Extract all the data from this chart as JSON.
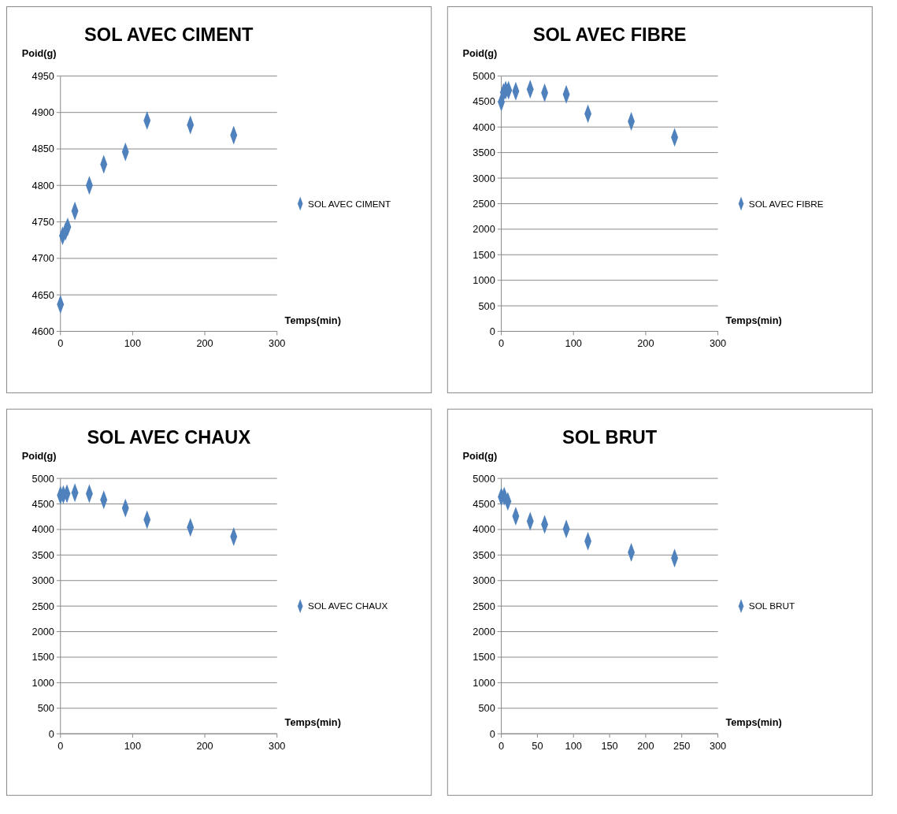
{
  "chart_data": [
    {
      "type": "scatter",
      "title": "SOL AVEC CIMENT",
      "ylabel": "Poid(g)",
      "xlabel": "Temps(min)",
      "xlim": [
        0,
        300
      ],
      "xticks": [
        0,
        100,
        200,
        300
      ],
      "ylim": [
        4600,
        4950
      ],
      "yticks": [
        4600,
        4650,
        4700,
        4750,
        4800,
        4850,
        4900,
        4950
      ],
      "grid": "y",
      "legend": "right",
      "marker": "diamond",
      "series": [
        {
          "name": "SOL AVEC CIMENT",
          "color": "#4f81bd",
          "x": [
            0,
            3,
            7,
            10,
            20,
            40,
            60,
            90,
            120,
            180,
            240
          ],
          "values": [
            4637,
            4731,
            4737,
            4743,
            4765,
            4800,
            4829,
            4846,
            4889,
            4883,
            4869
          ]
        }
      ]
    },
    {
      "type": "scatter",
      "title": "SOL AVEC FIBRE",
      "ylabel": "Poid(g)",
      "xlabel": "Temps(min)",
      "xlim": [
        0,
        300
      ],
      "xticks": [
        0,
        100,
        200,
        300
      ],
      "ylim": [
        0,
        5000
      ],
      "yticks": [
        0,
        500,
        1000,
        1500,
        2000,
        2500,
        3000,
        3500,
        4000,
        4500,
        5000
      ],
      "grid": "y",
      "legend": "right",
      "marker": "diamond",
      "series": [
        {
          "name": "SOL AVEC FIBRE",
          "color": "#4f81bd",
          "x": [
            0,
            3,
            6,
            10,
            20,
            40,
            60,
            90,
            120,
            180,
            240
          ],
          "values": [
            4490,
            4680,
            4720,
            4720,
            4700,
            4740,
            4670,
            4640,
            4260,
            4110,
            3800
          ]
        }
      ]
    },
    {
      "type": "scatter",
      "title": "SOL AVEC CHAUX",
      "ylabel": "Poid(g)",
      "xlabel": "Temps(min)",
      "xlim": [
        0,
        300
      ],
      "xticks": [
        0,
        100,
        200,
        300
      ],
      "ylim": [
        0,
        5000
      ],
      "yticks": [
        0,
        500,
        1000,
        1500,
        2000,
        2500,
        3000,
        3500,
        4000,
        4500,
        5000
      ],
      "grid": "y",
      "legend": "right",
      "marker": "diamond",
      "series": [
        {
          "name": "SOL AVEC CHAUX",
          "color": "#4f81bd",
          "x": [
            0,
            4,
            9,
            20,
            40,
            60,
            90,
            120,
            180,
            240
          ],
          "values": [
            4670,
            4680,
            4700,
            4720,
            4700,
            4580,
            4420,
            4190,
            4040,
            3860
          ]
        }
      ]
    },
    {
      "type": "scatter",
      "title": "SOL BRUT",
      "ylabel": "Poid(g)",
      "xlabel": "Temps(min)",
      "xlim": [
        0,
        300
      ],
      "xticks": [
        0,
        50,
        100,
        150,
        200,
        250,
        300
      ],
      "ylim": [
        0,
        5000
      ],
      "yticks": [
        0,
        500,
        1000,
        1500,
        2000,
        2500,
        3000,
        3500,
        4000,
        4500,
        5000
      ],
      "grid": "y",
      "legend": "right",
      "marker": "diamond",
      "series": [
        {
          "name": "SOL BRUT",
          "color": "#4f81bd",
          "x": [
            0,
            4,
            9,
            20,
            40,
            60,
            90,
            120,
            180,
            240
          ],
          "values": [
            4640,
            4650,
            4550,
            4260,
            4160,
            4100,
            4010,
            3770,
            3550,
            3440
          ]
        }
      ]
    }
  ]
}
